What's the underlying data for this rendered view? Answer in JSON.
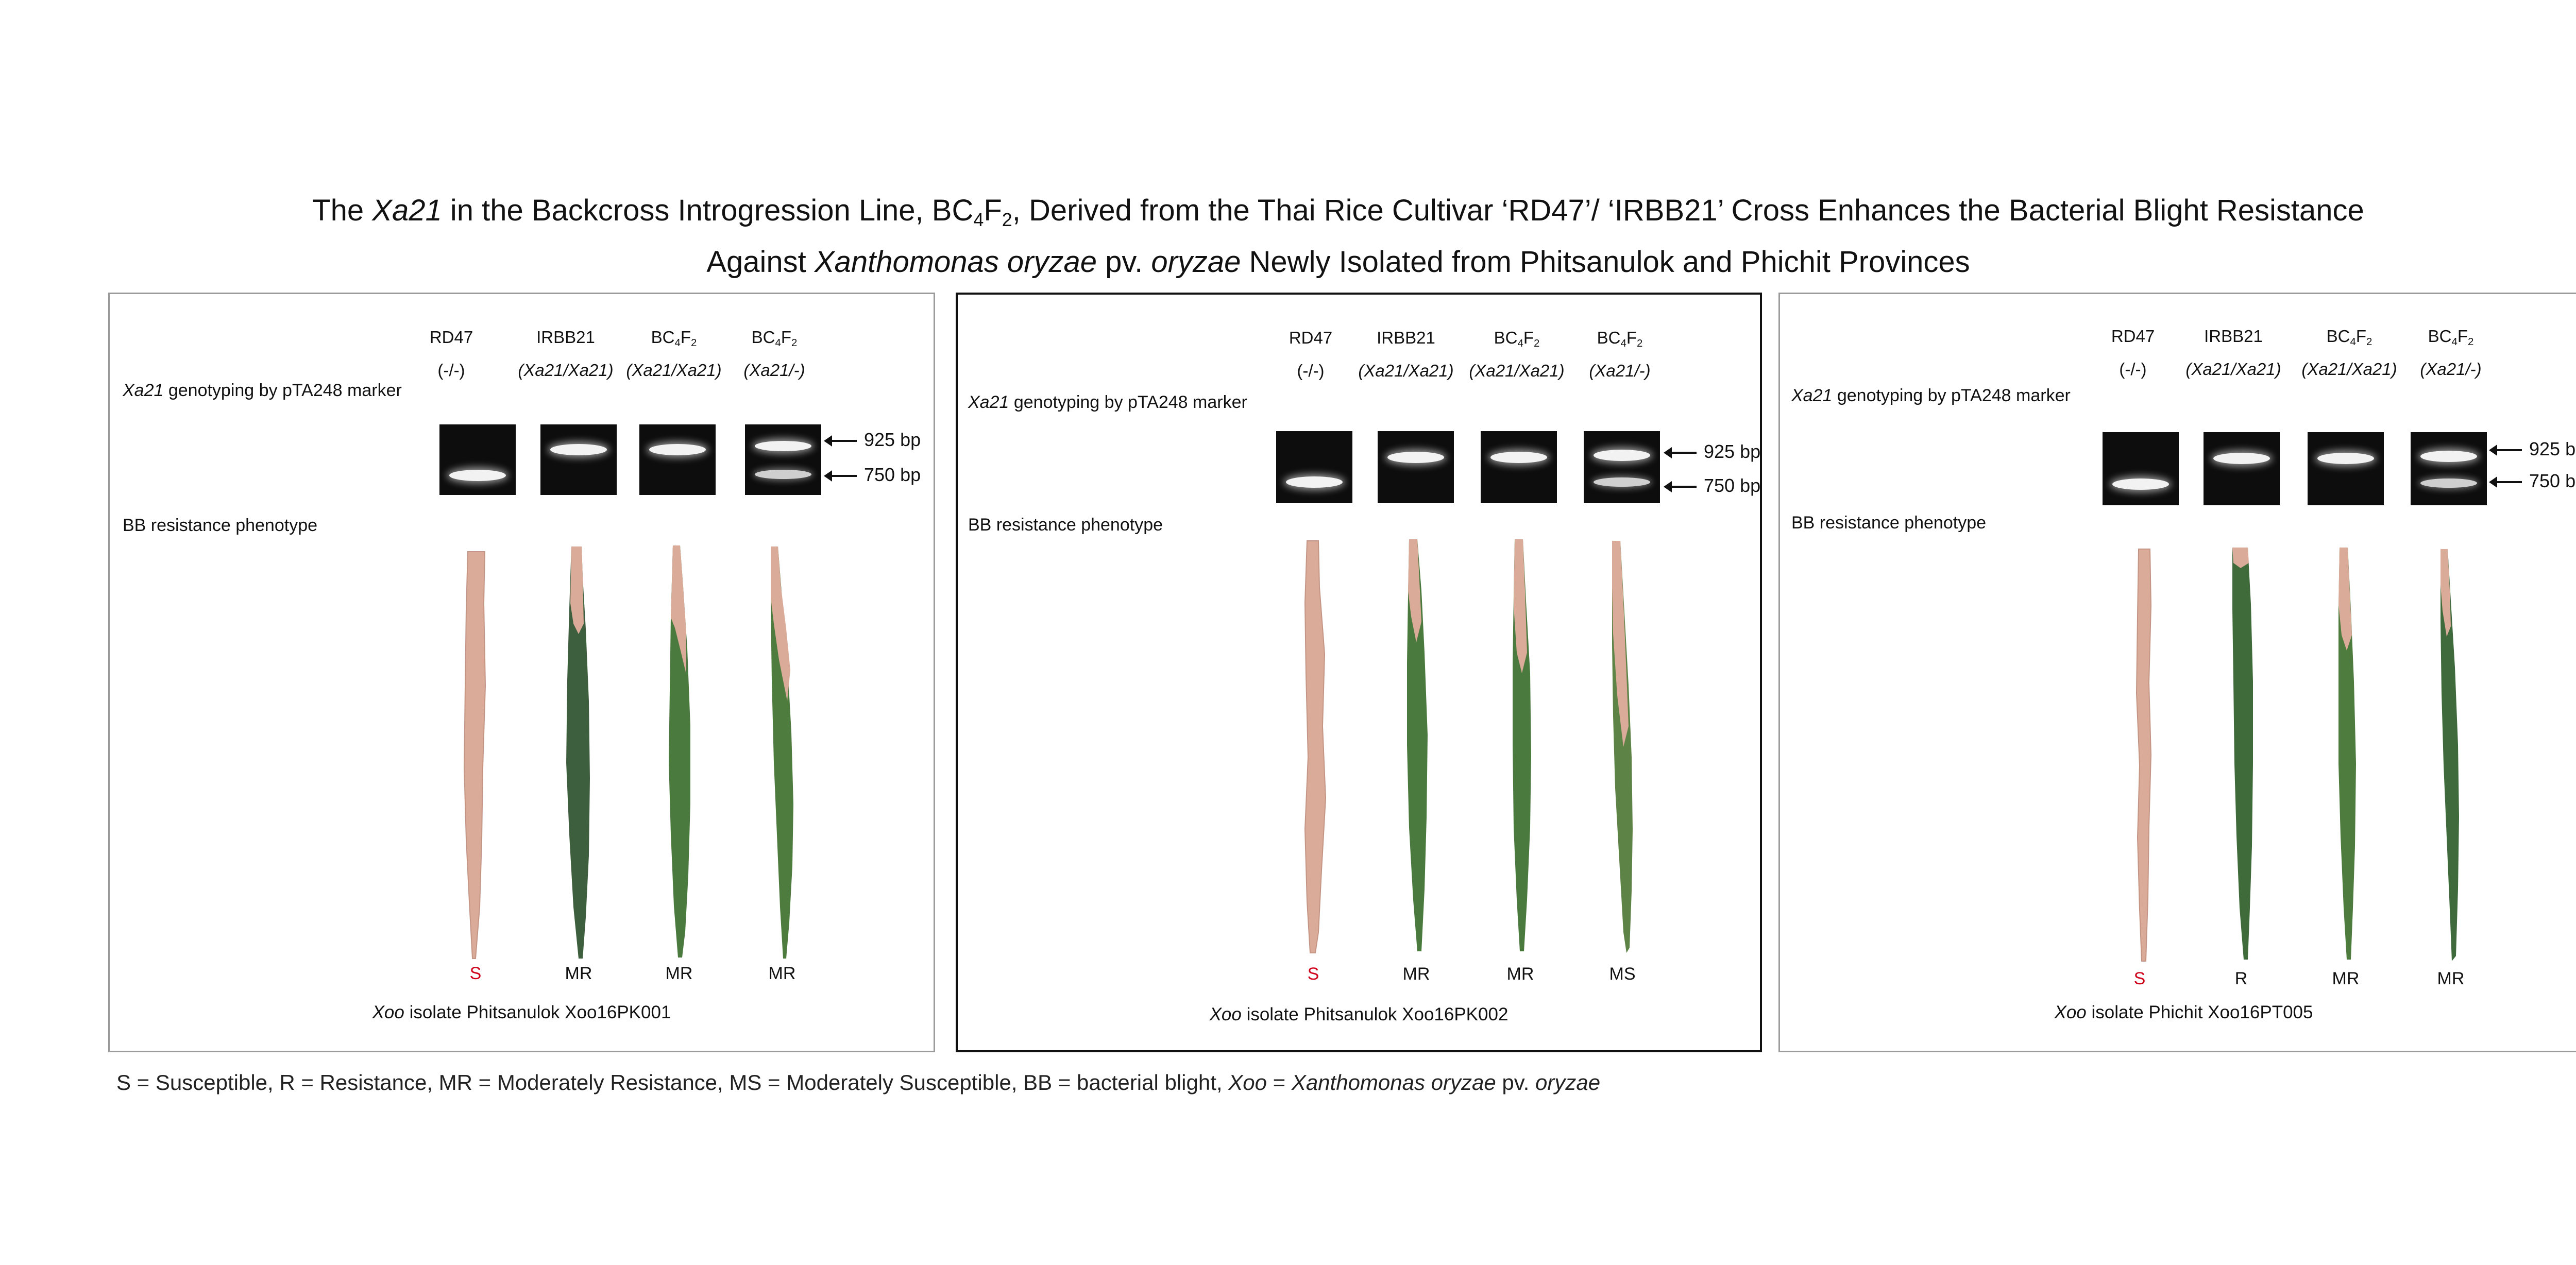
{
  "title": {
    "line1": {
      "p1": "The ",
      "i1": "Xa21",
      "p2": " in the Backcross Introgression Line, BC",
      "s1": "4",
      "p3": "F",
      "s2": "2",
      "p4": ", Derived from the Thai Rice Cultivar ‘RD47’/ ‘IRBB21’ Cross Enhances the Bacterial Blight Resistance"
    },
    "line2": {
      "p1": "Against ",
      "i1": "Xanthomonas oryzae",
      "p2": " pv. ",
      "i2": "oryzae",
      "p3": " Newly Isolated from Phitsanulok and Phichit Provinces"
    }
  },
  "common": {
    "genotyping_label_italic": "Xa21",
    "genotyping_label_rest": " genotyping by pTA248 marker",
    "phenotype_label": "BB resistance phenotype",
    "marker_925": "925 bp",
    "marker_750": "750 bp",
    "columns": [
      {
        "name": "RD47",
        "genotype": "(-/-)"
      },
      {
        "name_pre": "IRBB21",
        "genotype": "(Xa21/Xa21)"
      },
      {
        "name_pre": "BC",
        "sub1": "4",
        "mid": "F",
        "sub2": "2",
        "genotype": "(Xa21/Xa21)"
      },
      {
        "name_pre": "BC",
        "sub1": "4",
        "mid": "F",
        "sub2": "2",
        "genotype": "(Xa21/-)"
      }
    ],
    "isolate_italic": "Xoo"
  },
  "panels": [
    {
      "isolate_rest": " isolate Phitsanulok Xoo16PK001",
      "scores": [
        "S",
        "MR",
        "MR",
        "MR"
      ],
      "gel_bands": [
        [
          "750"
        ],
        [
          "925"
        ],
        [
          "925"
        ],
        [
          "925",
          "750"
        ]
      ]
    },
    {
      "isolate_rest": " isolate Phitsanulok Xoo16PK002",
      "scores": [
        "S",
        "MR",
        "MR",
        "MS"
      ],
      "gel_bands": [
        [
          "750"
        ],
        [
          "925"
        ],
        [
          "925"
        ],
        [
          "925",
          "750"
        ]
      ]
    },
    {
      "isolate_rest": " isolate Phichit Xoo16PT005",
      "scores": [
        "S",
        "R",
        "MR",
        "MR"
      ],
      "gel_bands": [
        [
          "750"
        ],
        [
          "925"
        ],
        [
          "925"
        ],
        [
          "925",
          "750"
        ]
      ]
    }
  ],
  "legend": {
    "p1": "S = Susceptible, R = Resistance, MR = Moderately Resistance, MS = Moderately Susceptible, BB = bacterial blight, ",
    "i1": "Xoo",
    "p2": " = ",
    "i2": "Xanthomonas oryzae",
    "p3": " pv. ",
    "i3": "oryzae"
  },
  "colors": {
    "susceptible_score": "#d0021b",
    "leaf_green": "#3f6a3a",
    "leaf_diseased": "#d9ab98",
    "gel_background": "#0d0d0d"
  }
}
